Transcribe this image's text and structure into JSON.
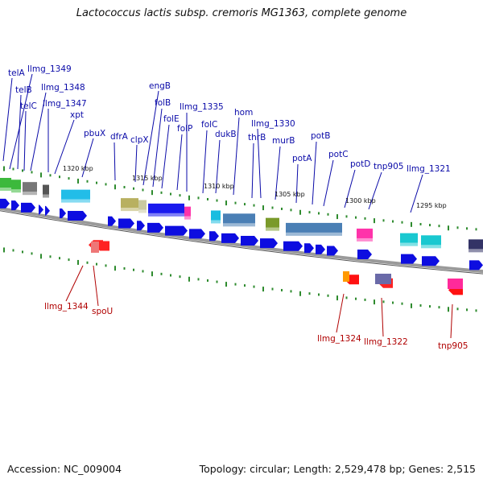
{
  "title": "Lactococcus lactis subsp. cremoris MG1363, complete genome",
  "footer": {
    "accession": "Accession: NC_009004",
    "topology": "Topology: circular; Length: 2,529,478 bp; Genes: 2,515"
  },
  "colors": {
    "forward_label": "#0a0aa8",
    "reverse_label": "#b00000",
    "gene_arrow": "#0d0de0",
    "backbone": "#8a8a8a",
    "tick_major": "#2e8b2e"
  },
  "scale_labels": [
    "1320 kbp",
    "1315 kbp",
    "1310 kbp",
    "1305 kbp",
    "1300 kbp",
    "1295 kbp"
  ],
  "forward_labels": [
    "telA",
    "llmg_1349",
    "telB",
    "llmg_1348",
    "telC",
    "llmg_1347",
    "xpt",
    "pbuX",
    "dfrA",
    "clpX",
    "engB",
    "folB",
    "folE",
    "folP",
    "llmg_1335",
    "folC",
    "dukB",
    "hom",
    "llmg_1330",
    "thrB",
    "murB",
    "potA",
    "potB",
    "potC",
    "potD",
    "tnp905",
    "llmg_1321"
  ],
  "reverse_labels": [
    "llmg_1344",
    "spoU",
    "llmg_1324",
    "llmg_1322",
    "tnp905"
  ]
}
